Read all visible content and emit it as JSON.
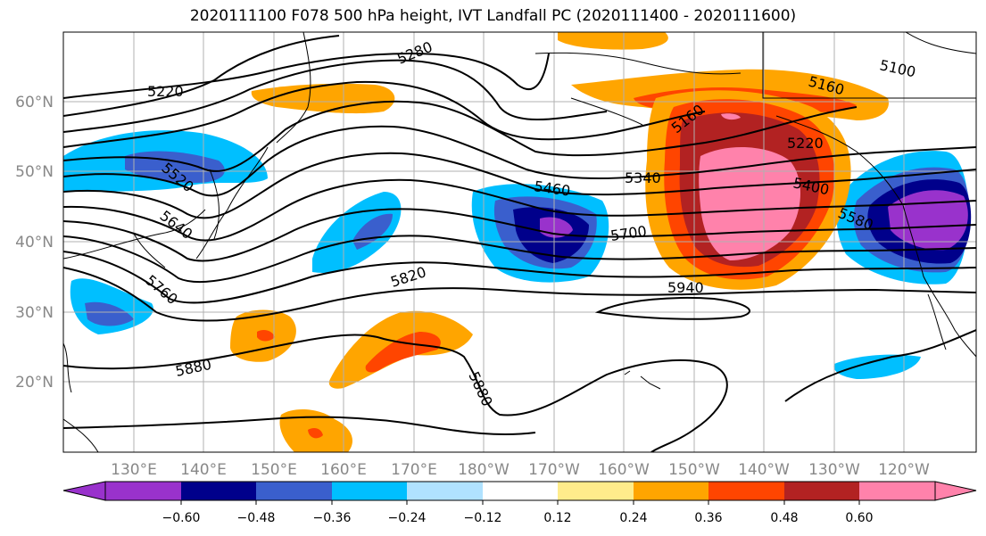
{
  "title": "2020111100 F078 500 hPa height, IVT Landfall PC (2020111400 - 2020111600)",
  "map": {
    "lon_labels": [
      "130°E",
      "140°E",
      "150°E",
      "160°E",
      "170°E",
      "180°W",
      "170°W",
      "160°W",
      "150°W",
      "140°W",
      "130°W",
      "120°W"
    ],
    "lat_labels": [
      "60°N",
      "50°N",
      "40°N",
      "30°N",
      "20°N"
    ],
    "contour_labels": [
      "5100",
      "5160",
      "5160",
      "5220",
      "5220",
      "5280",
      "5340",
      "5400",
      "5460",
      "5520",
      "5580",
      "5640",
      "5700",
      "5760",
      "5820",
      "5880",
      "5880",
      "5940"
    ],
    "colors": {
      "-0.66": "#9932cc",
      "-0.54": "#00008b",
      "-0.42": "#3a5fcd",
      "-0.30": "#00bfff",
      "-0.18": "#b0e2ff",
      "0.00": "#ffffff",
      "0.18": "#ffec8b",
      "0.30": "#ffa500",
      "0.42": "#ff4500",
      "0.54": "#b22222",
      "0.66": "#ff82ab"
    }
  },
  "colorbar": {
    "labels": [
      "−0.60",
      "−0.48",
      "−0.36",
      "−0.24",
      "−0.12",
      "0.12",
      "0.24",
      "0.36",
      "0.48",
      "0.60"
    ],
    "bins": [
      {
        "color": "#9932cc"
      },
      {
        "color": "#00008b"
      },
      {
        "color": "#3a5fcd"
      },
      {
        "color": "#00bfff"
      },
      {
        "color": "#b0e2ff"
      },
      {
        "color": "#ffffff"
      },
      {
        "color": "#ffec8b"
      },
      {
        "color": "#ffa500"
      },
      {
        "color": "#ff4500"
      },
      {
        "color": "#b22222"
      },
      {
        "color": "#ff82ab"
      }
    ]
  }
}
